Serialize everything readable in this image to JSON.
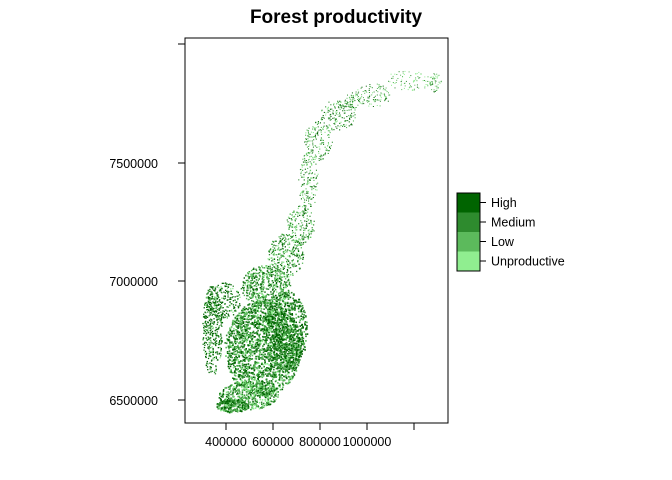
{
  "title": "Forest productivity",
  "map": {
    "x_ticks": [
      "400000",
      "600000",
      "800000",
      "1000000"
    ],
    "y_ticks": [
      "6500000",
      "7000000",
      "7500000"
    ]
  },
  "legend": {
    "items": [
      {
        "label": "High",
        "color": "#006400"
      },
      {
        "label": "Medium",
        "color": "#2e8b2e"
      },
      {
        "label": "Low",
        "color": "#5cba5c"
      },
      {
        "label": "Unproductive",
        "color": "#90ee90"
      }
    ]
  }
}
